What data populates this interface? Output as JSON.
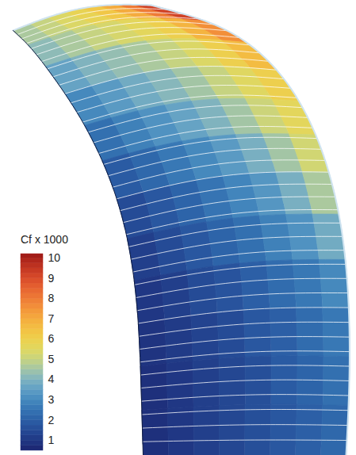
{
  "chart_data": {
    "type": "heatmap",
    "colorbar": {
      "title": "Cf x 1000",
      "range": [
        0.5,
        10.2
      ],
      "ticks": [
        1,
        2,
        3,
        4,
        5,
        6,
        7,
        8,
        9,
        10
      ]
    },
    "cells": [
      [
        4.6,
        5.0,
        5.4,
        5.8,
        6.3,
        7.0,
        8.0,
        9.2
      ],
      [
        4.2,
        4.6,
        5.0,
        5.3,
        5.6,
        6.0,
        6.8,
        7.6
      ],
      [
        3.6,
        4.0,
        4.3,
        4.6,
        5.0,
        5.4,
        6.0,
        6.6
      ],
      [
        3.0,
        3.4,
        3.8,
        4.1,
        4.5,
        5.0,
        5.5,
        6.0
      ],
      [
        2.4,
        2.8,
        3.2,
        3.6,
        4.0,
        4.5,
        5.1,
        5.6
      ],
      [
        1.9,
        2.2,
        2.6,
        3.0,
        3.4,
        3.9,
        4.5,
        5.2
      ],
      [
        1.5,
        1.8,
        2.1,
        2.5,
        2.9,
        3.3,
        3.9,
        4.6
      ],
      [
        1.2,
        1.5,
        1.8,
        2.1,
        2.4,
        2.8,
        3.2,
        3.8
      ],
      [
        1.0,
        1.2,
        1.5,
        1.7,
        2.0,
        2.3,
        2.6,
        3.0
      ],
      [
        0.9,
        1.1,
        1.3,
        1.5,
        1.8,
        2.0,
        2.3,
        2.6
      ],
      [
        0.8,
        1.0,
        1.2,
        1.4,
        1.6,
        1.9,
        2.1,
        2.4
      ],
      [
        0.8,
        1.0,
        1.2,
        1.4,
        1.6,
        1.8,
        2.0,
        2.2
      ]
    ]
  }
}
